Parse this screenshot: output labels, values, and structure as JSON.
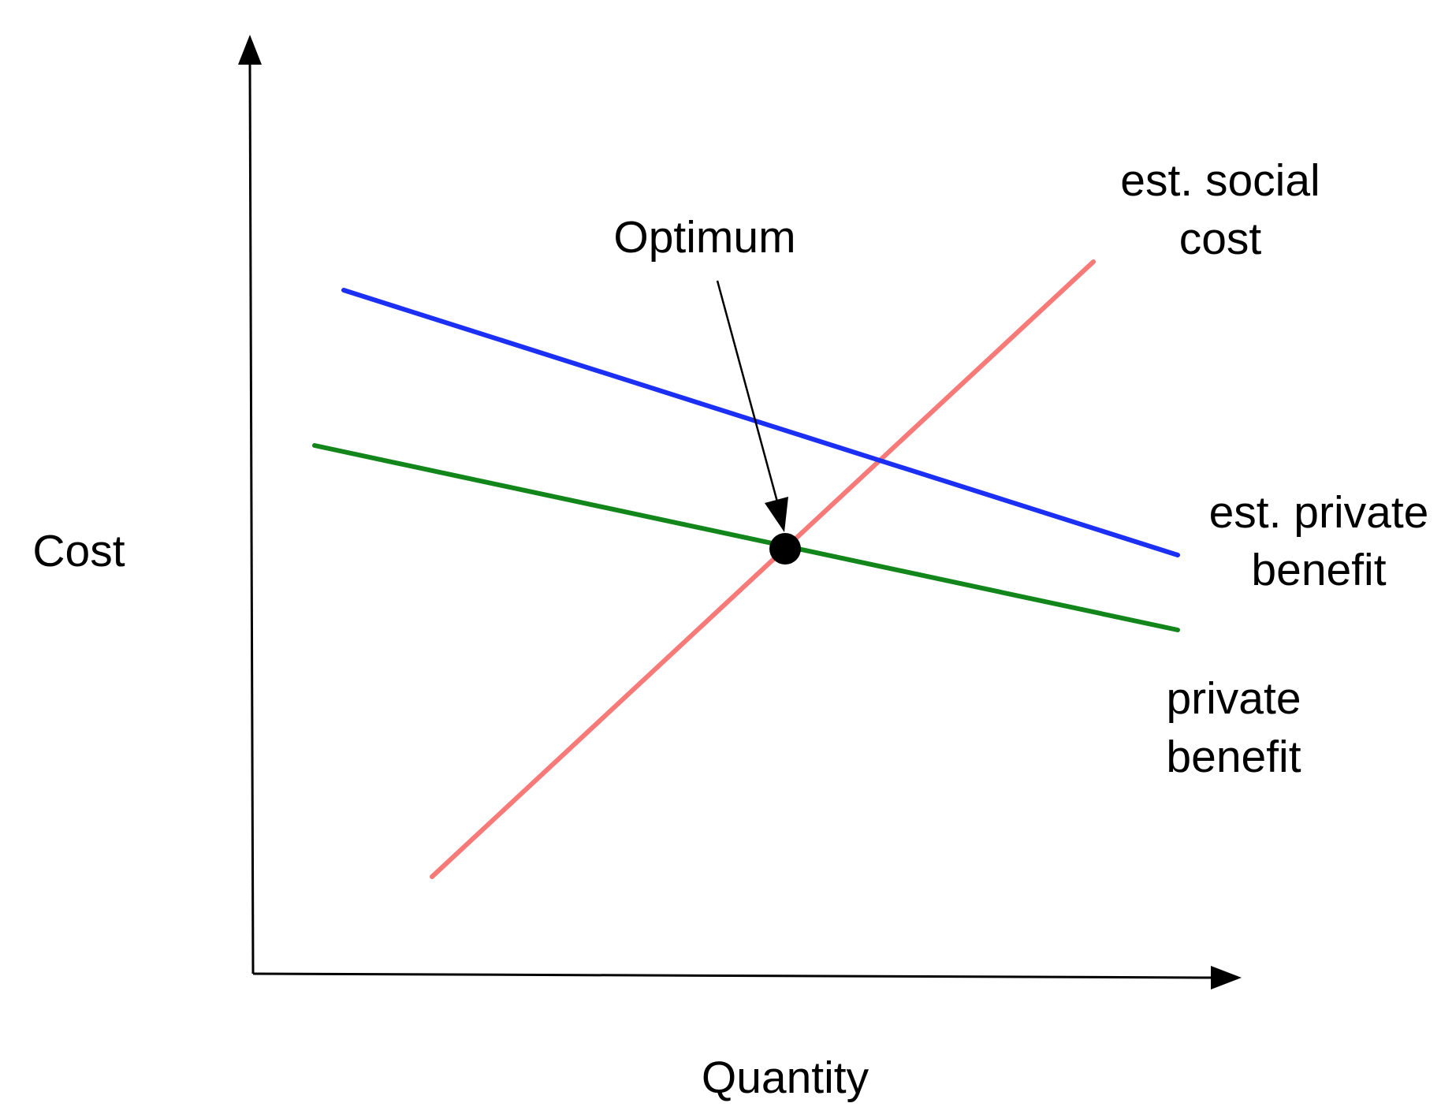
{
  "axes": {
    "y_label": "Cost",
    "x_label": "Quantity",
    "color": "#000000"
  },
  "lines": [
    {
      "id": "est-social-cost",
      "label_line1": "est. social",
      "label_line2": "cost",
      "color": "#f87a78"
    },
    {
      "id": "est-private-benefit",
      "label_line1": "est. private",
      "label_line2": "benefit",
      "color": "#1b2ff5"
    },
    {
      "id": "private-benefit",
      "label_line1": "private",
      "label_line2": "benefit",
      "color": "#12861a"
    }
  ],
  "annotation": {
    "label": "Optimum",
    "marker_color": "#000000"
  }
}
